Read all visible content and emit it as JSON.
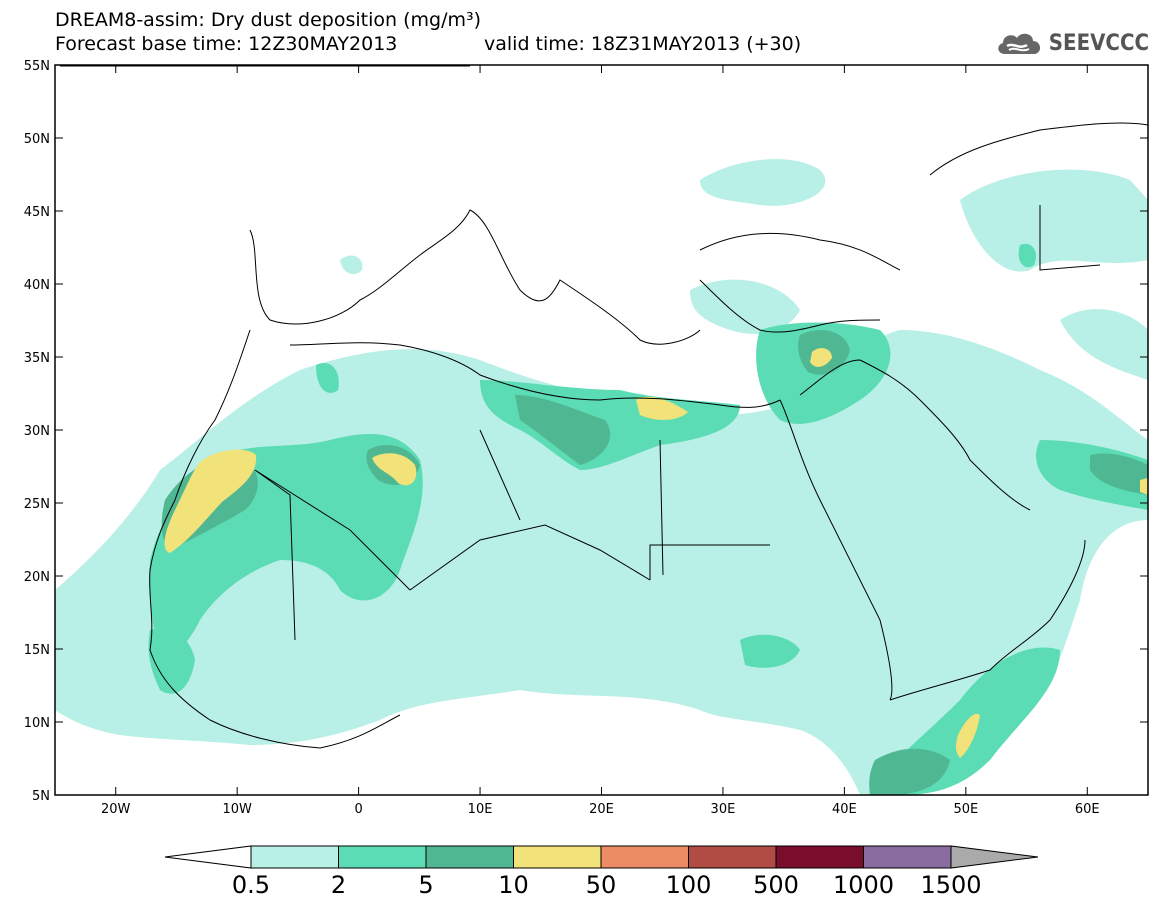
{
  "title_line1": "DREAM8-assim: Dry dust deposition (mg/m³)",
  "title_line2_base": "Forecast base time: 12Z30MAY2013",
  "title_line2_valid": "valid time: 18Z31MAY2013 (+30)",
  "logo": {
    "icon": "cloud-icon",
    "text": "SEEVCCC"
  },
  "map": {
    "lon_range": [
      -25,
      65
    ],
    "lat_range": [
      5,
      55
    ],
    "lat_ticks": [
      "55N",
      "50N",
      "45N",
      "40N",
      "35N",
      "30N",
      "25N",
      "20N",
      "15N",
      "10N",
      "5N"
    ],
    "lon_ticks": [
      "20W",
      "10W",
      "0",
      "10E",
      "20E",
      "30E",
      "40E",
      "50E",
      "60E"
    ]
  },
  "colorbar": {
    "levels": [
      "0.5",
      "2",
      "5",
      "10",
      "50",
      "100",
      "500",
      "1000",
      "1500"
    ],
    "colors": [
      "#b8efe6",
      "#5cdcb4",
      "#4fb892",
      "#f2e27a",
      "#ec8c64",
      "#b04c44",
      "#7a0c2c",
      "#8a6ca0",
      "#aaaaaa"
    ]
  }
}
